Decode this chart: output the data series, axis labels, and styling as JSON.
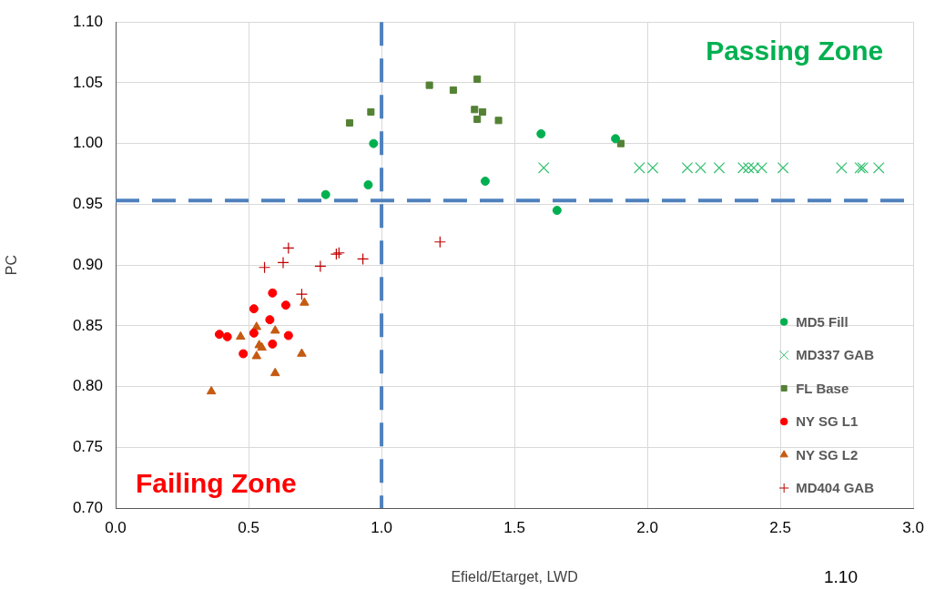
{
  "chart_data": {
    "type": "scatter",
    "xlabel": "Efield/Etarget, LWD",
    "ylabel": "PC",
    "xlim": [
      0,
      3
    ],
    "xticks": [
      {
        "value": 0,
        "label": "0.0"
      },
      0.5,
      {
        "value": 1,
        "label": "1.0"
      },
      1.5,
      {
        "value": 2,
        "label": "2.0"
      },
      2.5,
      {
        "value": 3,
        "label": "3.0"
      }
    ],
    "ylim": [
      0.7,
      1.1
    ],
    "yticks": [
      {
        "value": 0.7,
        "label": "0.70"
      },
      0.75,
      {
        "value": 0.8,
        "label": "0.80"
      },
      0.85,
      {
        "value": 0.9,
        "label": "0.90"
      },
      0.95,
      {
        "value": 1,
        "label": "1.00"
      },
      1.05,
      {
        "value": 1.1,
        "label": "1.10"
      }
    ],
    "grid": true,
    "legend": "bottom right",
    "series": [
      {
        "name": "MD5 Fill",
        "color": "#00b050",
        "marker": "circle",
        "x": [
          0.97,
          0.95,
          0.79,
          1.39,
          1.6,
          1.88,
          1.66
        ],
        "values": [
          1.0,
          0.966,
          0.958,
          0.969,
          1.008,
          1.004,
          0.945
        ]
      },
      {
        "name": "MD337 GAB",
        "color": "#33c070",
        "marker": "cross",
        "x": [
          1.61,
          1.97,
          2.02,
          2.15,
          2.2,
          2.27,
          2.36,
          2.38,
          2.4,
          2.43,
          2.51,
          2.73,
          2.8,
          2.81,
          2.87
        ],
        "values": [
          0.98,
          0.98,
          0.98,
          0.98,
          0.98,
          0.98,
          0.98,
          0.98,
          0.98,
          0.98,
          0.98,
          0.98,
          0.98,
          0.98,
          0.98
        ]
      },
      {
        "name": "FL Base",
        "color": "#548235",
        "marker": "square",
        "x": [
          0.88,
          0.96,
          1.18,
          1.27,
          1.36,
          1.35,
          1.38,
          1.36,
          1.44,
          1.9
        ],
        "values": [
          1.017,
          1.026,
          1.048,
          1.044,
          1.053,
          1.028,
          1.026,
          1.02,
          1.019,
          1.0
        ]
      },
      {
        "name": "NY SG L1",
        "color": "#ff0000",
        "marker": "circle",
        "x": [
          0.59,
          0.64,
          0.52,
          0.58,
          0.39,
          0.42,
          0.52,
          0.65,
          0.59,
          0.48
        ],
        "values": [
          0.877,
          0.867,
          0.864,
          0.855,
          0.843,
          0.841,
          0.844,
          0.842,
          0.835,
          0.827
        ]
      },
      {
        "name": "NY SG L2",
        "color": "#c55a11",
        "marker": "triangle",
        "x": [
          0.71,
          0.53,
          0.6,
          0.47,
          0.54,
          0.55,
          0.53,
          0.7,
          0.6,
          0.36
        ],
        "values": [
          0.869,
          0.849,
          0.846,
          0.841,
          0.834,
          0.832,
          0.825,
          0.827,
          0.811,
          0.796
        ]
      },
      {
        "name": "MD404 GAB",
        "color": "#c00000",
        "marker": "plus",
        "x": [
          0.65,
          0.63,
          0.56,
          0.77,
          0.83,
          0.84,
          0.93,
          1.22,
          0.7
        ],
        "values": [
          0.914,
          0.902,
          0.898,
          0.899,
          0.909,
          0.91,
          0.905,
          0.919,
          0.876
        ]
      }
    ],
    "ref_lines": [
      {
        "axis": "x",
        "value": 1,
        "color": "#4f81bd",
        "line_style": "dashed"
      },
      {
        "axis": "y",
        "value": 0.953,
        "color": "#4f81bd",
        "line_style": "dashed"
      }
    ],
    "annotations": [
      "Passing Zone",
      "Failing Zone",
      "1.10"
    ]
  }
}
